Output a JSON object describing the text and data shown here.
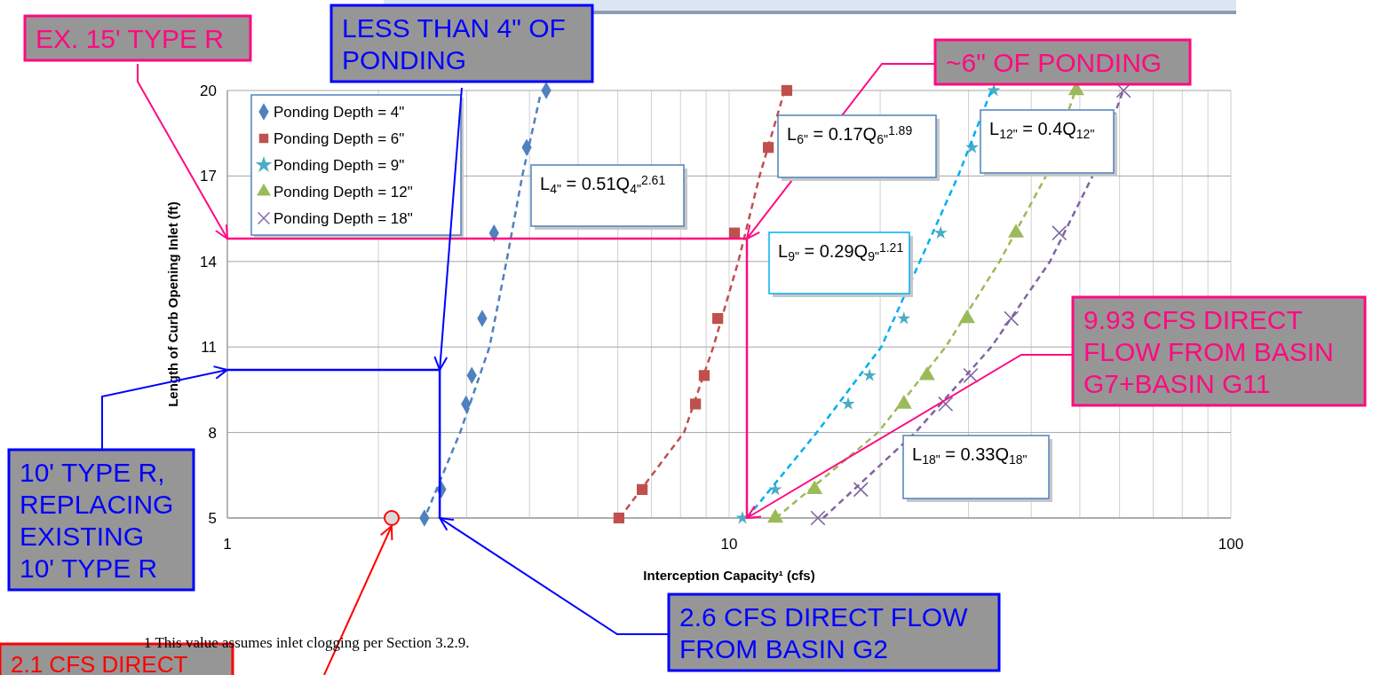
{
  "chart_data": {
    "type": "scatter",
    "xlabel": "Interception Capacity¹ (cfs)",
    "ylabel": "Length of Curb Opening Inlet (ft)",
    "log": "x",
    "grid": true,
    "legend": "top left",
    "xlim": [
      1,
      100
    ],
    "ylim": [
      5,
      20
    ],
    "xticks": [
      1,
      {
        "value": 2,
        "label": null
      },
      {
        "value": 3,
        "label": null
      },
      {
        "value": 4,
        "label": null
      },
      {
        "value": 5,
        "label": null
      },
      {
        "value": 6,
        "label": null
      },
      {
        "value": 7,
        "label": null
      },
      {
        "value": 8,
        "label": null
      },
      {
        "value": 9,
        "label": null
      },
      10,
      {
        "value": 20,
        "label": null
      },
      {
        "value": 30,
        "label": null
      },
      {
        "value": 40,
        "label": null
      },
      {
        "value": 50,
        "label": null
      },
      {
        "value": 60,
        "label": null
      },
      {
        "value": 70,
        "label": null
      },
      {
        "value": 80,
        "label": null
      },
      {
        "value": 90,
        "label": null
      },
      100
    ],
    "yticks": [
      5,
      8,
      11,
      14,
      17,
      20
    ],
    "series": [
      {
        "name": "Ponding Depth = 4\"",
        "color": "#4f81bd",
        "marker": "diamond",
        "x": [
          2.47,
          2.67,
          2.99,
          3.07,
          3.22,
          3.4,
          3.95,
          4.32
        ],
        "values": [
          5,
          6,
          9,
          10,
          12,
          15,
          18,
          20
        ]
      },
      {
        "name": "Ponding Depth = 6\"",
        "color": "#c0504d",
        "marker": "square",
        "x": [
          6.03,
          6.71,
          8.57,
          8.92,
          9.49,
          10.25,
          11.97,
          13.03
        ],
        "values": [
          5,
          6,
          9,
          10,
          12,
          15,
          18,
          20
        ]
      },
      {
        "name": "Ponding Depth = 9\"",
        "color": "#4bacc6",
        "marker": "star",
        "x": [
          10.63,
          12.36,
          17.27,
          19.05,
          22.3,
          26.4,
          30.5,
          33.7
        ],
        "values": [
          5,
          6,
          9,
          10,
          12,
          15,
          18,
          20
        ]
      },
      {
        "name": "Ponding Depth = 12\"",
        "color": "#9bbb59",
        "marker": "triangle",
        "x": [
          12.36,
          14.8,
          22.3,
          24.8,
          29.8,
          37.3,
          49.2
        ],
        "values": [
          5,
          6,
          9,
          10,
          12,
          15,
          20
        ]
      },
      {
        "name": "Ponding Depth = 18\"",
        "color": "#8064a2",
        "marker": "cross",
        "x": [
          15.03,
          18.3,
          27,
          30.3,
          36.5,
          45.5,
          61.1
        ],
        "values": [
          5,
          6,
          9,
          10,
          12,
          15,
          20
        ]
      },
      {
        "type": "line",
        "line_style": "dashed",
        "color": "#4f81bd",
        "x": [
          2.5,
          2.91,
          3.33,
          3.6,
          3.87,
          4.2
        ],
        "values": [
          5.2,
          8,
          11,
          14,
          17,
          19.8
        ]
      },
      {
        "type": "line",
        "line_style": "dashed",
        "color": "#c0504d",
        "x": [
          6.05,
          8.13,
          9.3,
          10.43,
          11.5,
          12.9
        ],
        "values": [
          5,
          8,
          11,
          14,
          17,
          20
        ]
      },
      {
        "type": "line",
        "line_style": "dashed",
        "color": "#00b0f0",
        "x": [
          10.85,
          14.95,
          20.1,
          24,
          28.6,
          33.3
        ],
        "values": [
          5,
          8,
          11,
          14,
          17,
          20
        ]
      },
      {
        "type": "line",
        "line_style": "dashed",
        "color": "#9bbb59",
        "x": [
          12.4,
          19.8,
          27,
          34.6,
          42.8,
          49
        ],
        "values": [
          5,
          8,
          11,
          14,
          17,
          20
        ]
      },
      {
        "type": "line",
        "line_style": "dashed",
        "color": "#8064a2",
        "x": [
          15.4,
          23.5,
          33.3,
          43.6,
          53,
          61
        ],
        "values": [
          5,
          8,
          11,
          14,
          17,
          20
        ]
      },
      {
        "type": "line",
        "line_style": "solid",
        "color": "#0000ff",
        "x": [
          1,
          2.65,
          2.65
        ],
        "values": [
          10.2,
          10.2,
          5
        ]
      },
      {
        "type": "line",
        "line_style": "solid",
        "color": "#ff0a80",
        "x": [
          1,
          10.85,
          10.85
        ],
        "values": [
          14.8,
          14.8,
          5
        ]
      }
    ],
    "annotations": [
      {
        "text": "EX. 15' TYPE R",
        "x": 1,
        "y": 14.8
      },
      {
        "text": "LESS THAN 4\" OF PONDING",
        "x": 2.65,
        "y": 10.2
      },
      {
        "text": "~6\" OF PONDING",
        "x": 10.85,
        "y": 14.8
      },
      {
        "text": "9.93 CFS DIRECT FLOW FROM BASIN G7+BASIN G11",
        "x": 10.85,
        "y": 5
      },
      {
        "text": "10' TYPE R, REPLACING EXISTING 10' TYPE R",
        "x": 1,
        "y": 10.2
      },
      {
        "text": "2.6 CFS DIRECT FLOW FROM BASIN G2",
        "x": 2.65,
        "y": 5
      },
      "2.1 CFS DIRECT",
      "1 This value assumes inlet clogging per Section 3.2.9.",
      "L$_{4\"}$ = 0.51Q$_{4\"}$$^{2.61}$",
      "L$_{6\"}$ = 0.17Q$_{6\"}$$^{1.89}$",
      "L$_{9\"}$ = 0.29Q$_{9\"}$$^{1.21}$",
      "L$_{12\"}$ = 0.4Q$_{12\"}$",
      "L$_{18\"}$ = 0.33Q$_{18\"}$"
    ]
  }
}
